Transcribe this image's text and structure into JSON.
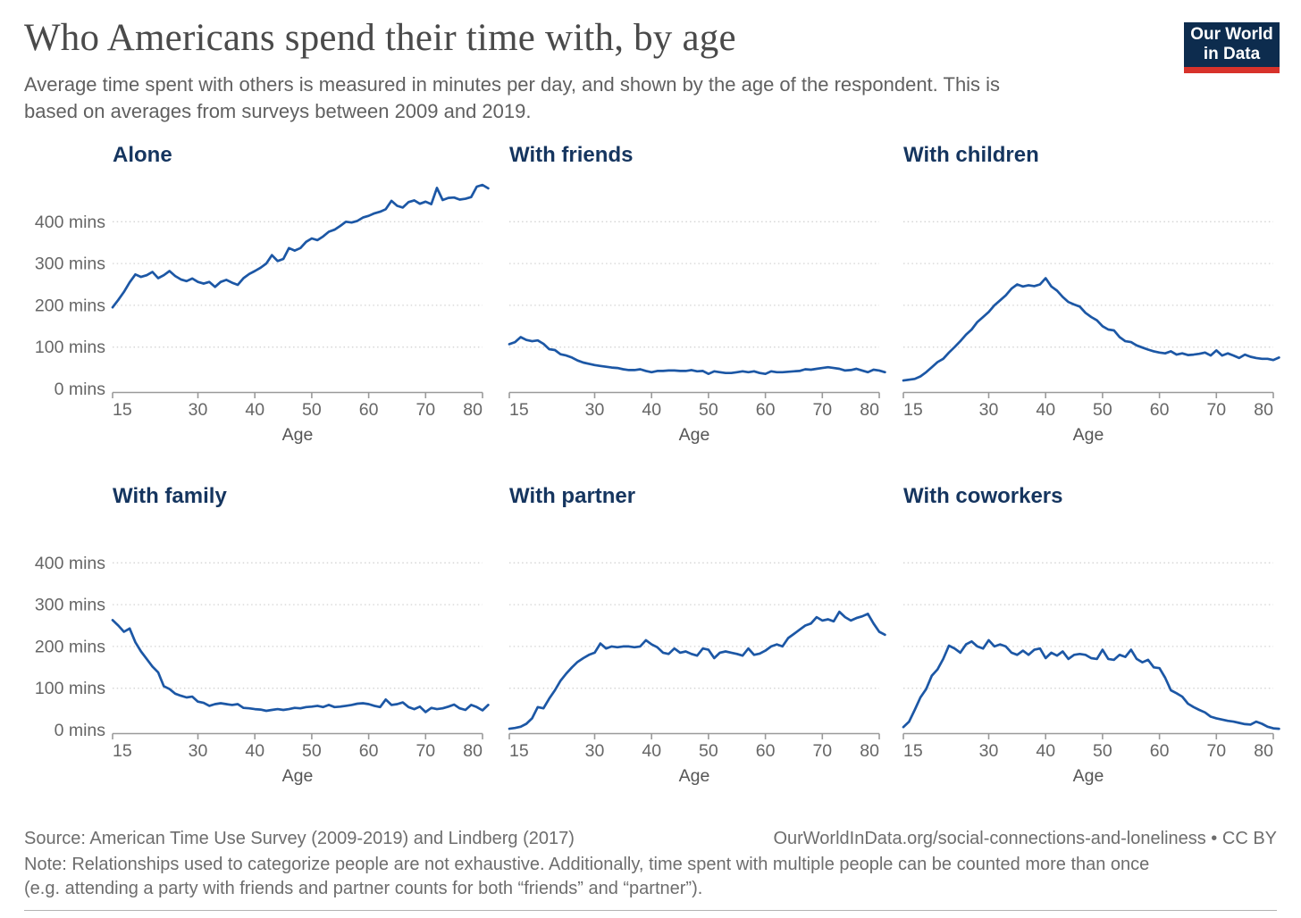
{
  "page": {
    "title": "Who Americans spend their time with, by age",
    "subtitle": "Average time spent with others is measured in minutes per day, and shown by the age of the respondent. This is\nbased on averages from surveys between 2009 and 2019.",
    "logo": {
      "line1": "Our World",
      "line2": "in Data"
    },
    "footer": {
      "source": "Source: American Time Use Survey (2009-2019) and Lindberg (2017)",
      "link": "OurWorldInData.org/social-connections-and-loneliness • CC BY",
      "note": "Note: Relationships used to categorize people are not exhaustive. Additionally, time spent with multiple people can be counted more than once\n(e.g. attending a party with friends and partner counts for both “friends” and “partner”)."
    },
    "colors": {
      "line": "#1c57a5",
      "chart_title": "#15355f",
      "logo_bg": "#0d2c4e",
      "logo_accent": "#d7322b"
    }
  },
  "chart_data": [
    {
      "type": "line",
      "title": "Alone",
      "xlabel": "Age",
      "x_start": 15,
      "xlim": [
        15,
        81
      ],
      "ylim": [
        0,
        520
      ],
      "x_ticks": [
        15,
        30,
        40,
        50,
        60,
        70,
        80
      ],
      "x_tick_labels": [
        "15",
        "30",
        "40",
        "50",
        "60",
        "70",
        "80"
      ],
      "y_ticks": [
        0,
        100,
        200,
        300,
        400
      ],
      "y_tick_labels": [
        "0 mins",
        "100 mins",
        "200 mins",
        "300 mins",
        "400 mins"
      ],
      "show_y_labels": true,
      "values": [
        195,
        213,
        232,
        255,
        274,
        268,
        272,
        280,
        265,
        272,
        282,
        270,
        262,
        258,
        264,
        256,
        252,
        256,
        244,
        256,
        261,
        254,
        249,
        265,
        275,
        282,
        290,
        300,
        320,
        306,
        311,
        337,
        331,
        337,
        352,
        360,
        356,
        365,
        376,
        381,
        390,
        400,
        398,
        402,
        410,
        414,
        420,
        424,
        430,
        450,
        438,
        434,
        447,
        451,
        443,
        448,
        442,
        481,
        452,
        457,
        458,
        453,
        455,
        459,
        484,
        488,
        480
      ]
    },
    {
      "type": "line",
      "title": "With friends",
      "xlabel": "Age",
      "x_start": 15,
      "xlim": [
        15,
        81
      ],
      "ylim": [
        0,
        520
      ],
      "x_ticks": [
        15,
        30,
        40,
        50,
        60,
        70,
        80
      ],
      "x_tick_labels": [
        "15",
        "30",
        "40",
        "50",
        "60",
        "70",
        "80"
      ],
      "y_ticks": [
        0,
        100,
        200,
        300,
        400
      ],
      "y_tick_labels": [],
      "show_y_labels": false,
      "values": [
        107,
        112,
        124,
        117,
        114,
        116,
        108,
        95,
        93,
        83,
        80,
        75,
        68,
        63,
        60,
        57,
        55,
        53,
        51,
        50,
        47,
        45,
        45,
        47,
        43,
        40,
        43,
        43,
        44,
        44,
        43,
        43,
        45,
        42,
        43,
        36,
        42,
        40,
        38,
        38,
        40,
        42,
        40,
        42,
        38,
        36,
        42,
        40,
        40,
        41,
        42,
        43,
        47,
        46,
        48,
        50,
        52,
        50,
        48,
        44,
        45,
        48,
        44,
        40,
        46,
        44,
        40
      ]
    },
    {
      "type": "line",
      "title": "With children",
      "xlabel": "Age",
      "x_start": 15,
      "xlim": [
        15,
        81
      ],
      "ylim": [
        0,
        520
      ],
      "x_ticks": [
        15,
        30,
        40,
        50,
        60,
        70,
        80
      ],
      "x_tick_labels": [
        "15",
        "30",
        "40",
        "50",
        "60",
        "70",
        "80"
      ],
      "y_ticks": [
        0,
        100,
        200,
        300,
        400
      ],
      "y_tick_labels": [],
      "show_y_labels": false,
      "values": [
        20,
        22,
        24,
        30,
        40,
        52,
        64,
        72,
        87,
        100,
        114,
        130,
        142,
        160,
        172,
        184,
        200,
        212,
        224,
        240,
        250,
        245,
        248,
        246,
        250,
        265,
        245,
        235,
        220,
        208,
        202,
        197,
        182,
        172,
        164,
        150,
        142,
        140,
        124,
        114,
        112,
        104,
        99,
        94,
        90,
        87,
        85,
        90,
        82,
        85,
        81,
        82,
        84,
        87,
        80,
        92,
        80,
        85,
        80,
        74,
        82,
        77,
        74,
        72,
        72,
        69,
        75
      ]
    },
    {
      "type": "line",
      "title": "With family",
      "xlabel": "Age",
      "x_start": 15,
      "xlim": [
        15,
        81
      ],
      "ylim": [
        0,
        520
      ],
      "x_ticks": [
        15,
        30,
        40,
        50,
        60,
        70,
        80
      ],
      "x_tick_labels": [
        "15",
        "30",
        "40",
        "50",
        "60",
        "70",
        "80"
      ],
      "y_ticks": [
        0,
        100,
        200,
        300,
        400
      ],
      "y_tick_labels": [
        "0 mins",
        "100 mins",
        "200 mins",
        "300 mins",
        "400 mins"
      ],
      "show_y_labels": true,
      "values": [
        263,
        250,
        235,
        243,
        210,
        188,
        170,
        152,
        138,
        105,
        98,
        87,
        82,
        78,
        80,
        68,
        65,
        58,
        62,
        64,
        62,
        60,
        62,
        53,
        52,
        50,
        49,
        46,
        48,
        50,
        48,
        50,
        53,
        52,
        55,
        56,
        58,
        55,
        60,
        55,
        56,
        58,
        60,
        63,
        64,
        62,
        58,
        55,
        73,
        60,
        62,
        66,
        55,
        50,
        56,
        43,
        53,
        50,
        52,
        56,
        61,
        52,
        48,
        60,
        55,
        47,
        60
      ]
    },
    {
      "type": "line",
      "title": "With partner",
      "xlabel": "Age",
      "x_start": 15,
      "xlim": [
        15,
        81
      ],
      "ylim": [
        0,
        520
      ],
      "x_ticks": [
        15,
        30,
        40,
        50,
        60,
        70,
        80
      ],
      "x_tick_labels": [
        "15",
        "30",
        "40",
        "50",
        "60",
        "70",
        "80"
      ],
      "y_ticks": [
        0,
        100,
        200,
        300,
        400
      ],
      "y_tick_labels": [],
      "show_y_labels": false,
      "values": [
        3,
        5,
        8,
        15,
        28,
        55,
        52,
        75,
        95,
        118,
        135,
        150,
        163,
        172,
        180,
        185,
        207,
        195,
        200,
        198,
        200,
        200,
        198,
        200,
        215,
        205,
        198,
        185,
        182,
        195,
        185,
        188,
        182,
        178,
        195,
        192,
        172,
        185,
        188,
        185,
        182,
        178,
        195,
        180,
        183,
        190,
        200,
        205,
        200,
        220,
        230,
        240,
        250,
        255,
        270,
        262,
        265,
        260,
        283,
        270,
        262,
        268,
        272,
        278,
        255,
        235,
        228
      ]
    },
    {
      "type": "line",
      "title": "With coworkers",
      "xlabel": "Age",
      "x_start": 15,
      "xlim": [
        15,
        81
      ],
      "ylim": [
        0,
        520
      ],
      "x_ticks": [
        15,
        30,
        40,
        50,
        60,
        70,
        80
      ],
      "x_tick_labels": [
        "15",
        "30",
        "40",
        "50",
        "60",
        "70",
        "80"
      ],
      "y_ticks": [
        0,
        100,
        200,
        300,
        400
      ],
      "y_tick_labels": [],
      "show_y_labels": false,
      "values": [
        7,
        20,
        48,
        78,
        98,
        130,
        145,
        170,
        202,
        195,
        185,
        205,
        212,
        200,
        195,
        215,
        200,
        205,
        200,
        185,
        180,
        190,
        180,
        192,
        195,
        172,
        185,
        178,
        188,
        170,
        180,
        182,
        180,
        172,
        170,
        192,
        170,
        168,
        180,
        175,
        192,
        170,
        162,
        168,
        150,
        148,
        125,
        95,
        88,
        80,
        63,
        55,
        48,
        42,
        32,
        28,
        25,
        22,
        20,
        17,
        14,
        13,
        20,
        15,
        8,
        4,
        3
      ]
    }
  ]
}
